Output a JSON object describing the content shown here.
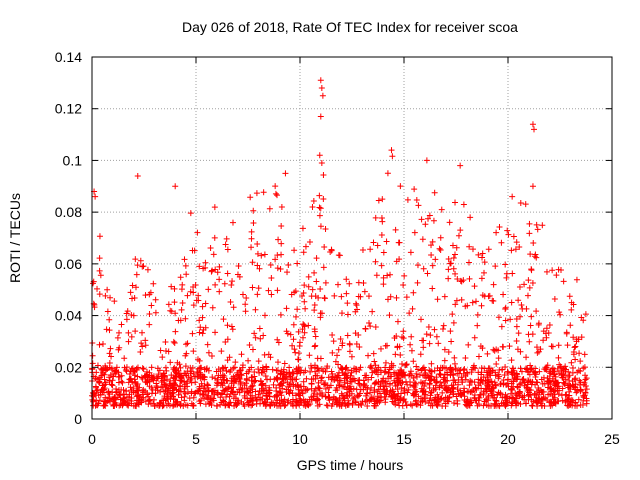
{
  "chart_data": {
    "type": "scatter",
    "title": "Day 026 of 2018, Rate Of TEC Index for receiver scoa",
    "xlabel": "GPS time / hours",
    "ylabel": "ROTI / TECUs",
    "xlim": [
      0,
      25
    ],
    "ylim": [
      0,
      0.14
    ],
    "xticks": [
      0,
      5,
      10,
      15,
      20,
      25
    ],
    "yticks": [
      0,
      0.02,
      0.04,
      0.06,
      0.08,
      0.1,
      0.12,
      0.14
    ],
    "xtick_labels": [
      "0",
      "5",
      "10",
      "15",
      "20",
      "25"
    ],
    "ytick_labels": [
      "0",
      "0.02",
      "0.04",
      "0.06",
      "0.08",
      "0.1",
      "0.12",
      "0.14"
    ],
    "grid": true,
    "marker": "+",
    "series_color": "#ff0000",
    "x_range_hours": [
      0,
      23.8
    ],
    "baseline_band": [
      0.005,
      0.02
    ],
    "envelope": [
      {
        "x": 0,
        "y": 0.09
      },
      {
        "x": 1,
        "y": 0.045
      },
      {
        "x": 2,
        "y": 0.065
      },
      {
        "x": 3,
        "y": 0.06
      },
      {
        "x": 4,
        "y": 0.05
      },
      {
        "x": 4.6,
        "y": 0.08
      },
      {
        "x": 5.5,
        "y": 0.08
      },
      {
        "x": 6.2,
        "y": 0.085
      },
      {
        "x": 7,
        "y": 0.075
      },
      {
        "x": 7.8,
        "y": 0.09
      },
      {
        "x": 9.3,
        "y": 0.095
      },
      {
        "x": 10,
        "y": 0.07
      },
      {
        "x": 11,
        "y": 0.1
      },
      {
        "x": 12,
        "y": 0.06
      },
      {
        "x": 13,
        "y": 0.065
      },
      {
        "x": 14.3,
        "y": 0.105
      },
      {
        "x": 15,
        "y": 0.09
      },
      {
        "x": 16.1,
        "y": 0.1
      },
      {
        "x": 17,
        "y": 0.08
      },
      {
        "x": 17.7,
        "y": 0.098
      },
      {
        "x": 18.5,
        "y": 0.07
      },
      {
        "x": 19.5,
        "y": 0.075
      },
      {
        "x": 20.3,
        "y": 0.086
      },
      {
        "x": 21.2,
        "y": 0.09
      },
      {
        "x": 22,
        "y": 0.068
      },
      {
        "x": 23,
        "y": 0.06
      },
      {
        "x": 23.8,
        "y": 0.045
      }
    ],
    "outliers": [
      {
        "x": 0.1,
        "y": 0.088
      },
      {
        "x": 0.15,
        "y": 0.086
      },
      {
        "x": 2.2,
        "y": 0.094
      },
      {
        "x": 4.0,
        "y": 0.09
      },
      {
        "x": 9.3,
        "y": 0.095
      },
      {
        "x": 11.0,
        "y": 0.131
      },
      {
        "x": 11.05,
        "y": 0.128
      },
      {
        "x": 11.1,
        "y": 0.125
      },
      {
        "x": 11.0,
        "y": 0.117
      },
      {
        "x": 10.95,
        "y": 0.102
      },
      {
        "x": 11.05,
        "y": 0.099
      },
      {
        "x": 14.4,
        "y": 0.104
      },
      {
        "x": 16.1,
        "y": 0.1
      },
      {
        "x": 17.7,
        "y": 0.098
      },
      {
        "x": 21.2,
        "y": 0.114
      },
      {
        "x": 21.25,
        "y": 0.112
      },
      {
        "x": 21.2,
        "y": 0.09
      },
      {
        "x": 20.2,
        "y": 0.086
      }
    ]
  }
}
